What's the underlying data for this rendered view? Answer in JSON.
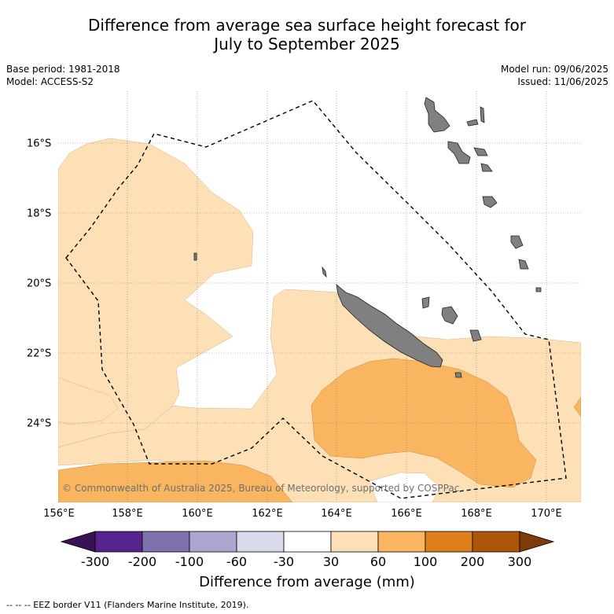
{
  "title_line1": "Difference from average sea surface height forecast for",
  "title_line2": "July to September 2025",
  "meta": {
    "base_period": "Base period: 1981-2018",
    "model": "Model: ACCESS-S2",
    "model_run": "Model run: 09/06/2025",
    "issued": "Issued: 11/06/2025"
  },
  "map": {
    "lon_labels": [
      "156°E",
      "158°E",
      "160°E",
      "162°E",
      "164°E",
      "166°E",
      "168°E",
      "170°E"
    ],
    "lat_labels": [
      "16°S",
      "18°S",
      "20°S",
      "22°S",
      "24°S"
    ],
    "copyright": "© Commonwealth of Australia 2025, Bureau of Meteorology, supported by COSPPac",
    "colors": {
      "land": "#808080",
      "level_30_60": "#fde0b6",
      "level_60_100": "#f9b55f",
      "eez_line": "#000000"
    }
  },
  "colorbar": {
    "ticks": [
      "-300",
      "-200",
      "-100",
      "-60",
      "-30",
      "30",
      "60",
      "100",
      "200",
      "300"
    ],
    "colors": [
      "#3a1155",
      "#56228b",
      "#7f71ab",
      "#ada6cf",
      "#d8d9ea",
      "#ffffff",
      "#fde0b6",
      "#f9b55f",
      "#df7f1a",
      "#ad560a",
      "#7e3b0a"
    ],
    "label": "Difference from average (mm)"
  },
  "footnote": "-- -- -- EEZ border V11 (Flanders Marine Institute, 2019)."
}
